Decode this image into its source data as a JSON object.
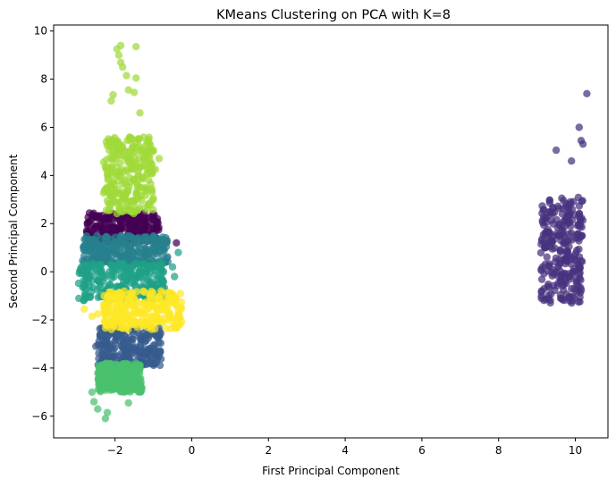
{
  "chart_data": {
    "type": "scatter",
    "title": "KMeans Clustering on PCA with K=8",
    "xlabel": "First Principal Component",
    "ylabel": "Second Principal Component",
    "xlim": [
      -3.6,
      10.85
    ],
    "ylim": [
      -6.9,
      10.25
    ],
    "xticks": [
      -2,
      0,
      2,
      4,
      6,
      8,
      10
    ],
    "yticks": [
      -6,
      -4,
      -2,
      0,
      2,
      4,
      6,
      8,
      10
    ],
    "xtick_labels": [
      "−2",
      "0",
      "2",
      "4",
      "6",
      "8",
      "10"
    ],
    "ytick_labels": [
      "−6",
      "−4",
      "−2",
      "0",
      "2",
      "4",
      "6",
      "8",
      "10"
    ],
    "grid": false,
    "legend": "none",
    "colormap": "viridis",
    "clusters": [
      {
        "color": "#440154",
        "x_range": [
          -2.75,
          -0.85
        ],
        "y_range": [
          1.25,
          2.45
        ],
        "outliers": [
          [
            -0.4,
            1.2
          ]
        ]
      },
      {
        "color": "#46327e",
        "x_range": [
          9.1,
          10.2
        ],
        "y_range": [
          -1.3,
          3.1
        ],
        "outliers": [
          [
            10.3,
            7.4
          ],
          [
            10.1,
            6.0
          ],
          [
            10.15,
            5.45
          ],
          [
            10.2,
            5.3
          ],
          [
            9.5,
            5.05
          ],
          [
            9.9,
            4.6
          ]
        ]
      },
      {
        "color": "#365c8d",
        "x_range": [
          -2.45,
          -0.8
        ],
        "y_range": [
          -3.9,
          -2.25
        ],
        "outliers": [
          [
            -2.5,
            -3.1
          ]
        ]
      },
      {
        "color": "#277f8e",
        "x_range": [
          -2.85,
          -0.6
        ],
        "y_range": [
          0.3,
          1.5
        ],
        "outliers": []
      },
      {
        "color": "#1fa187",
        "x_range": [
          -2.95,
          -0.7
        ],
        "y_range": [
          -1.2,
          0.35
        ],
        "outliers": [
          [
            -0.35,
            0.8
          ],
          [
            -0.5,
            0.2
          ],
          [
            -0.45,
            -0.2
          ]
        ]
      },
      {
        "color": "#4ac16d",
        "x_range": [
          -2.45,
          -1.3
        ],
        "y_range": [
          -5.0,
          -3.8
        ],
        "outliers": [
          [
            -2.25,
            -6.1
          ],
          [
            -2.2,
            -5.85
          ],
          [
            -2.45,
            -5.7
          ],
          [
            -2.55,
            -5.4
          ],
          [
            -1.65,
            -5.45
          ],
          [
            -2.6,
            -5.0
          ]
        ]
      },
      {
        "color": "#a0da39",
        "x_range": [
          -2.3,
          -1.0
        ],
        "y_range": [
          2.4,
          5.6
        ],
        "outliers": [
          [
            -1.85,
            9.4
          ],
          [
            -1.95,
            9.25
          ],
          [
            -1.45,
            9.35
          ],
          [
            -1.9,
            9.0
          ],
          [
            -1.85,
            8.7
          ],
          [
            -1.8,
            8.5
          ],
          [
            -1.7,
            8.15
          ],
          [
            -1.45,
            8.05
          ],
          [
            -1.65,
            7.55
          ],
          [
            -1.5,
            7.45
          ],
          [
            -2.05,
            7.35
          ],
          [
            -2.1,
            7.1
          ],
          [
            -1.35,
            6.6
          ],
          [
            -1.0,
            5.05
          ],
          [
            -1.1,
            4.8
          ],
          [
            -0.85,
            4.7
          ],
          [
            -0.95,
            4.25
          ]
        ]
      },
      {
        "color": "#fde725",
        "x_range": [
          -2.3,
          -0.25
        ],
        "y_range": [
          -2.4,
          -0.8
        ],
        "outliers": [
          [
            -2.8,
            -1.55
          ],
          [
            -2.6,
            -1.85
          ],
          [
            -2.45,
            -1.75
          ]
        ]
      }
    ]
  }
}
